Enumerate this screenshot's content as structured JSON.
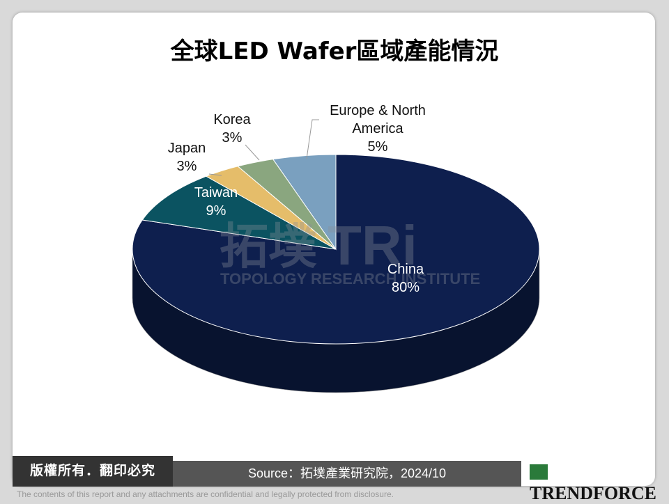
{
  "chart_data": {
    "type": "pie",
    "title": "全球LED Wafer區域產能情況",
    "categories": [
      "China",
      "Taiwan",
      "Japan",
      "Korea",
      "Europe & North America"
    ],
    "values": [
      80,
      9,
      3,
      3,
      5
    ],
    "value_labels": [
      "80%",
      "9%",
      "3%",
      "3%",
      "5%"
    ],
    "colors": [
      "#0e1f4e",
      "#0b5361",
      "#e5bd6a",
      "#8aa67f",
      "#7aa0bf"
    ]
  },
  "watermark": {
    "chinese": "拓墣",
    "logo": "TRi",
    "name": "TOPOLOGY RESEARCH INSTITUTE"
  },
  "footer": {
    "copyright": "版權所有．翻印必究",
    "source": "Source：拓墣產業研究院，2024/10",
    "disclaimer": "The contents of this report and any attachments are confidential and legally protected from disclosure.",
    "brand": "TRENDFORCE"
  }
}
